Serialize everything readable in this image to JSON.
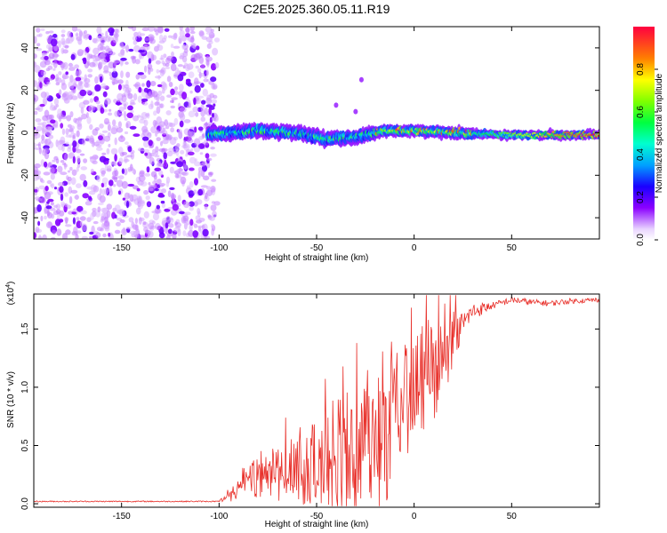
{
  "figure_title": "C2E5.2025.360.05.11.R19",
  "chart_data": [
    {
      "type": "heatmap",
      "title": "C2E5.2025.360.05.11.R19",
      "xlabel": "Height of straight line (km)",
      "ylabel": "Frequency (Hz)",
      "xlim": [
        -195,
        95
      ],
      "ylim": [
        -50,
        50
      ],
      "xticks": [
        -150,
        -100,
        -50,
        0,
        50
      ],
      "xtick_labels": [
        "-150",
        "-100",
        "-50",
        "0",
        "50"
      ],
      "yticks": [
        -40,
        -20,
        0,
        20,
        40
      ],
      "ytick_labels": [
        "-40",
        "-20",
        "0",
        "20",
        "40"
      ],
      "colorbar": {
        "label": "Normalized spectral amplitude",
        "range": [
          0,
          1
        ],
        "ticks": [
          0.0,
          0.2,
          0.4,
          0.6,
          0.8
        ],
        "tick_labels": [
          "0.0",
          "0.2",
          "0.4",
          "0.6",
          "0.8"
        ]
      },
      "description_of_data": {
        "noise_region_km": [
          -195,
          -105
        ],
        "noise_amplitude_range": [
          0.1,
          0.2
        ],
        "signal_band_center_hz": [
          [
            -105,
            -1
          ],
          [
            -80,
            1
          ],
          [
            -60,
            0
          ],
          [
            -45,
            -3
          ],
          [
            -30,
            -2
          ],
          [
            -15,
            1
          ],
          [
            0,
            1
          ],
          [
            20,
            0
          ],
          [
            50,
            -1
          ],
          [
            95,
            -1
          ]
        ],
        "signal_peak_amplitude_range": [
          0.3,
          1.0
        ],
        "isolated_points": [
          [
            -30,
            10
          ],
          [
            -27,
            25
          ],
          [
            -40,
            13
          ]
        ]
      }
    },
    {
      "type": "line",
      "title": "",
      "xlabel": "Height of straight line (km)",
      "ylabel": "SNR (10 * v/v)",
      "y_scale_label_base": "(x10",
      "y_scale_label_exp": "4",
      "y_scale_label_close": ")",
      "xlim": [
        -195,
        95
      ],
      "ylim": [
        -0.03,
        1.8
      ],
      "xticks": [
        -150,
        -100,
        -50,
        0,
        50
      ],
      "xtick_labels": [
        "-150",
        "-100",
        "-50",
        "0",
        "50"
      ],
      "yticks": [
        0.0,
        0.5,
        1.0,
        1.5
      ],
      "ytick_labels": [
        "0.0",
        "0.5",
        "1.0",
        "1.5"
      ],
      "series": [
        {
          "name": "SNR",
          "color": "#e8302a",
          "anchor_points": [
            [
              -195,
              0.02
            ],
            [
              -100,
              0.02
            ],
            [
              -96,
              0.05
            ],
            [
              -92,
              0.1
            ],
            [
              -88,
              0.15
            ],
            [
              -80,
              0.25
            ],
            [
              -70,
              0.25
            ],
            [
              -60,
              0.3
            ],
            [
              -50,
              0.35
            ],
            [
              -40,
              0.35
            ],
            [
              -30,
              0.4
            ],
            [
              -20,
              0.5
            ],
            [
              -15,
              0.55
            ],
            [
              -10,
              0.8
            ],
            [
              -5,
              0.9
            ],
            [
              0,
              1.0
            ],
            [
              5,
              1.1
            ],
            [
              10,
              1.15
            ],
            [
              15,
              1.2
            ],
            [
              20,
              1.4
            ],
            [
              25,
              1.55
            ],
            [
              30,
              1.65
            ],
            [
              40,
              1.7
            ],
            [
              50,
              1.75
            ],
            [
              60,
              1.73
            ],
            [
              70,
              1.72
            ],
            [
              80,
              1.74
            ],
            [
              95,
              1.75
            ]
          ],
          "noise_amplitude": [
            [
              -195,
              0.005
            ],
            [
              -100,
              0.005
            ],
            [
              -95,
              0.05
            ],
            [
              -80,
              0.2
            ],
            [
              -60,
              0.3
            ],
            [
              -40,
              0.45
            ],
            [
              -20,
              0.6
            ],
            [
              -10,
              0.55
            ],
            [
              10,
              0.45
            ],
            [
              25,
              0.1
            ],
            [
              40,
              0.03
            ],
            [
              95,
              0.02
            ]
          ]
        }
      ]
    }
  ]
}
